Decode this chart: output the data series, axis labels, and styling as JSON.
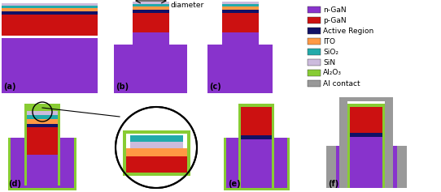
{
  "colors": {
    "n_GaN": "#8833CC",
    "p_GaN": "#CC1111",
    "active": "#111166",
    "ITO": "#FF9944",
    "SiO2": "#22AAAA",
    "SiN": "#CCBBDD",
    "Al2O3": "#88CC33",
    "Al_contact": "#999999",
    "background": "#FFFFFF"
  },
  "legend_items": [
    {
      "label": "n-GaN",
      "color": "#8833CC"
    },
    {
      "label": "p-GaN",
      "color": "#CC1111"
    },
    {
      "label": "Active Region",
      "color": "#111166"
    },
    {
      "label": "ITO",
      "color": "#FF9944"
    },
    {
      "label": "SiO₂",
      "color": "#22AAAA"
    },
    {
      "label": "SiN",
      "color": "#CCBBDD"
    },
    {
      "label": "Al₂O₃",
      "color": "#88CC33"
    },
    {
      "label": "Al contact",
      "color": "#999999"
    }
  ]
}
